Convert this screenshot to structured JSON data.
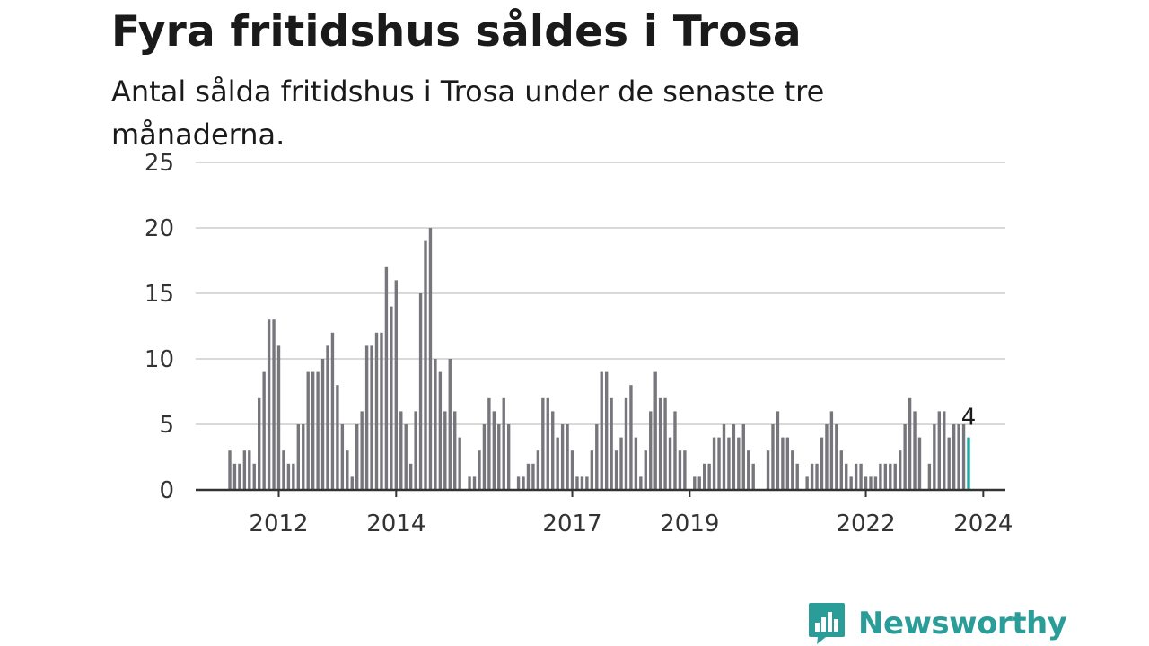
{
  "header": {
    "title": "Fyra fritidshus såldes i Trosa",
    "subtitle": "Antal sålda fritidshus i Trosa under de senaste tre månaderna."
  },
  "brand": {
    "name": "Newsworthy",
    "icon": "newsworthy-logo-icon"
  },
  "colors": {
    "bar": "#76767c",
    "highlight": "#1aa9a3",
    "grid": "#d9d9d9",
    "axis": "#333333",
    "brand": "#2a9d98"
  },
  "chart_data": {
    "type": "bar",
    "x_tick_labels": [
      "2012",
      "2014",
      "2017",
      "2019",
      "2022",
      "2024"
    ],
    "y_ticks": [
      0,
      5,
      10,
      15,
      20,
      25
    ],
    "ylim": [
      0,
      25
    ],
    "grid": true,
    "x_start": "2011-03",
    "x_end": "2025-03",
    "highlight_label": "4",
    "series": [
      {
        "values": [
          3,
          2,
          2,
          3,
          3,
          2,
          7,
          9,
          13,
          13,
          11,
          3,
          2,
          2,
          5,
          5,
          9,
          9,
          9,
          10,
          11,
          12,
          8,
          5,
          3,
          1,
          5,
          6,
          11,
          11,
          12,
          12,
          17,
          14,
          16,
          6,
          5,
          2,
          6,
          15,
          19,
          20,
          10,
          9,
          6,
          10,
          6,
          4,
          0,
          1,
          1,
          3,
          5,
          7,
          6,
          5,
          7,
          5,
          0,
          1,
          1,
          2,
          2,
          3,
          7,
          7,
          6,
          4,
          5,
          5,
          3,
          1,
          1,
          1,
          3,
          5,
          9,
          9,
          7,
          3,
          4,
          7,
          8,
          4,
          1,
          3,
          6,
          9,
          7,
          7,
          4,
          6,
          3,
          3,
          0,
          1,
          1,
          2,
          2,
          4,
          4,
          5,
          4,
          5,
          4,
          5,
          3,
          2,
          0,
          0,
          3,
          5,
          6,
          4,
          4,
          3,
          2,
          0,
          1,
          2,
          2,
          4,
          5,
          6,
          5,
          3,
          2,
          1,
          2,
          2,
          1,
          1,
          1,
          2,
          2,
          2,
          2,
          3,
          5,
          7,
          6,
          4,
          0,
          2,
          5,
          6,
          6,
          4,
          5,
          5,
          5,
          4
        ]
      }
    ]
  }
}
